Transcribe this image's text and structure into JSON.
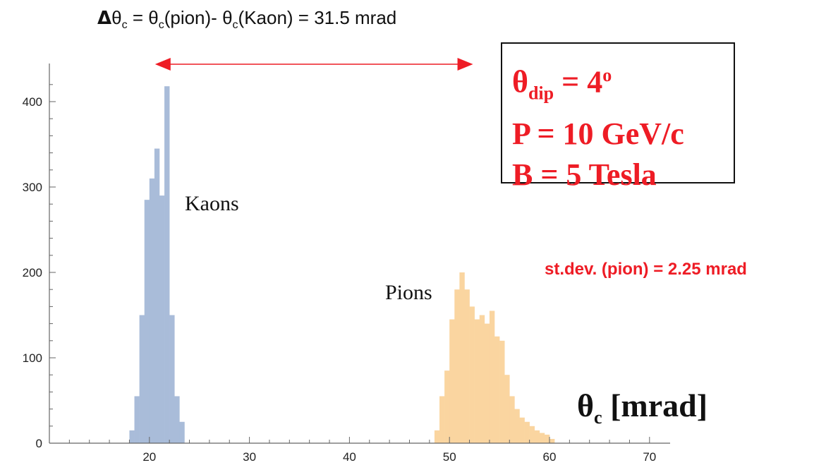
{
  "header": {
    "delta": "Δ",
    "theta": "θ",
    "sub_c": "c",
    "mid": " = ",
    "pion_part": "(pion)- ",
    "kaon_part": "(Kaon) = 31.5 mrad"
  },
  "params": {
    "theta": "θ",
    "dip": "dip",
    "dip_value": " = 4",
    "degree": "o",
    "momentum": "P = 10 GeV/c",
    "field": "B = 5 Tesla"
  },
  "stdev_label": "st.dev. (pion) = 2.25 mrad",
  "x_title": {
    "theta": "θ",
    "sub": "c",
    "unit": " [mrad]"
  },
  "colors": {
    "kaon": "#a9bcd9",
    "pion": "#fad5a0",
    "annotation": "#ee1c25",
    "axis": "#666666"
  },
  "chart_data": {
    "type": "bar",
    "xlim": [
      10,
      72
    ],
    "ylim": [
      0,
      440
    ],
    "bin_width": 0.5,
    "x_ticks": [
      20,
      30,
      40,
      50,
      60,
      70
    ],
    "y_ticks": [
      0,
      100,
      200,
      300,
      400
    ],
    "arrow": {
      "from": 20,
      "to": 52
    },
    "series": [
      {
        "name": "Kaons",
        "x": [
          18.0,
          18.5,
          19.0,
          19.5,
          20.0,
          20.5,
          21.0,
          21.5,
          22.0,
          22.5,
          23.0
        ],
        "values": [
          15,
          55,
          150,
          285,
          310,
          345,
          290,
          418,
          150,
          55,
          25
        ]
      },
      {
        "name": "Pions",
        "x": [
          48.5,
          49.0,
          49.5,
          50.0,
          50.5,
          51.0,
          51.5,
          52.0,
          52.5,
          53.0,
          53.5,
          54.0,
          54.5,
          55.0,
          55.5,
          56.0,
          56.5,
          57.0,
          57.5,
          58.0,
          58.5,
          59.0,
          59.5,
          60.0
        ],
        "values": [
          15,
          55,
          85,
          145,
          180,
          200,
          180,
          160,
          145,
          150,
          140,
          155,
          125,
          120,
          80,
          55,
          40,
          30,
          25,
          20,
          15,
          12,
          10,
          5
        ]
      }
    ]
  }
}
